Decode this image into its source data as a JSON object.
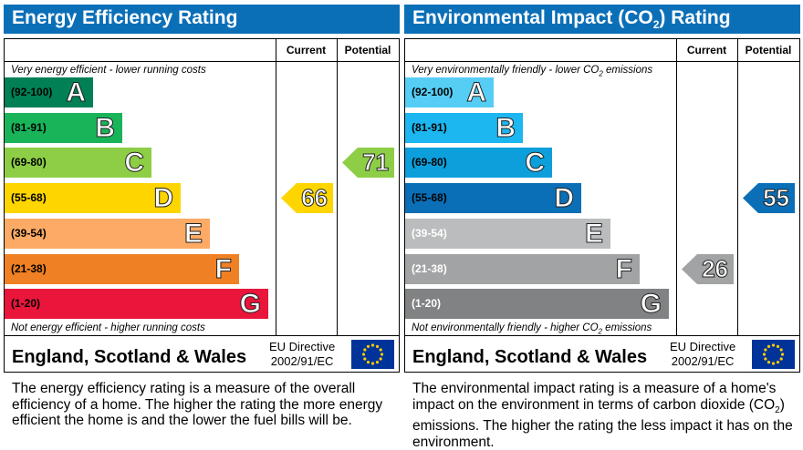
{
  "chart_data": [
    {
      "type": "bar",
      "title": "Energy Efficiency Rating",
      "columns": [
        "Current",
        "Potential"
      ],
      "top_note": "Very energy efficient - lower running costs",
      "bottom_note": "Not energy efficient - higher running costs",
      "bands": [
        {
          "range": "(92-100)",
          "letter": "A",
          "color": "#008054"
        },
        {
          "range": "(81-91)",
          "letter": "B",
          "color": "#19b459"
        },
        {
          "range": "(69-80)",
          "letter": "C",
          "color": "#8dce46"
        },
        {
          "range": "(55-68)",
          "letter": "D",
          "color": "#ffd500"
        },
        {
          "range": "(39-54)",
          "letter": "E",
          "color": "#fcaa65"
        },
        {
          "range": "(21-38)",
          "letter": "F",
          "color": "#ef8023"
        },
        {
          "range": "(1-20)",
          "letter": "G",
          "color": "#e9153b"
        }
      ],
      "current": {
        "value": 66,
        "band": "D",
        "color": "#ffd500"
      },
      "potential": {
        "value": 71,
        "band": "C",
        "color": "#8dce46"
      },
      "footer": "England, Scotland & Wales",
      "directive_line1": "EU Directive",
      "directive_line2": "2002/91/EC",
      "description": "The energy efficiency rating is a measure of the overall efficiency of a home. The higher the rating the more energy efficient the home is and the lower the fuel bills will be."
    },
    {
      "type": "bar",
      "title_main": "Environmental Impact (CO",
      "title_sub": "2",
      "title_end": ") Rating",
      "columns": [
        "Current",
        "Potential"
      ],
      "top_note_main": "Very environmentally friendly - lower CO",
      "top_note_sub": "2",
      "top_note_end": " emissions",
      "bottom_note_main": "Not environmentally friendly - higher CO",
      "bottom_note_sub": "2",
      "bottom_note_end": " emissions",
      "bands": [
        {
          "range": "(92-100)",
          "letter": "A",
          "color": "#55cdf5"
        },
        {
          "range": "(81-91)",
          "letter": "B",
          "color": "#1cb6f0"
        },
        {
          "range": "(69-80)",
          "letter": "C",
          "color": "#0d9fdb"
        },
        {
          "range": "(55-68)",
          "letter": "D",
          "color": "#0b6fb8"
        },
        {
          "range": "(39-54)",
          "letter": "E",
          "color": "#bbbcbd"
        },
        {
          "range": "(21-38)",
          "letter": "F",
          "color": "#a2a3a4"
        },
        {
          "range": "(1-20)",
          "letter": "G",
          "color": "#818284"
        }
      ],
      "current": {
        "value": 26,
        "band": "F",
        "color": "#a2a3a4"
      },
      "potential": {
        "value": 55,
        "band": "D",
        "color": "#0b6fb8"
      },
      "footer": "England, Scotland & Wales",
      "directive_line1": "EU Directive",
      "directive_line2": "2002/91/EC",
      "description_main": "The environmental impact rating is a measure of a home's impact on the environment in terms of carbon dioxide (CO",
      "description_sub": "2",
      "description_end": ") emissions. The higher the rating the less impact it has on the environment."
    }
  ]
}
